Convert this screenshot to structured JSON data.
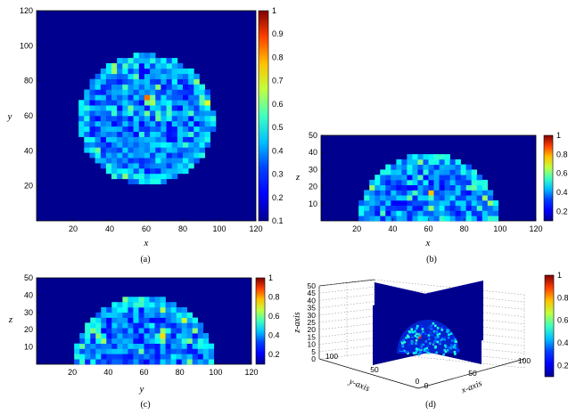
{
  "colormap": [
    "#00008f",
    "#0000ff",
    "#0080ff",
    "#00ffff",
    "#80ff80",
    "#ffff00",
    "#ff8000",
    "#ff0000",
    "#800000"
  ],
  "background_color": "#00008f",
  "chart_data": [
    {
      "id": "a",
      "type": "heatmap",
      "caption": "(a)",
      "xlabel": "x",
      "ylabel": "y",
      "xlim": [
        0,
        120
      ],
      "ylim": [
        0,
        120
      ],
      "x_ticks": [
        "20",
        "40",
        "60",
        "80",
        "100",
        "120"
      ],
      "y_ticks": [
        "20",
        "40",
        "60",
        "80",
        "100",
        "120"
      ],
      "colorbar_ticks": [
        "0.1",
        "0.2",
        "0.3",
        "0.4",
        "0.5",
        "0.6",
        "0.7",
        "0.8",
        "0.9",
        "1"
      ],
      "colorbar_range": [
        0.1,
        1
      ],
      "region": {
        "shape": "disk",
        "center": [
          60,
          58
        ],
        "radius": 37
      },
      "hotspots": [
        {
          "x": 60,
          "y": 68,
          "value": 1.0
        }
      ]
    },
    {
      "id": "b",
      "type": "heatmap",
      "caption": "(b)",
      "xlabel": "x",
      "ylabel": "z",
      "xlim": [
        0,
        120
      ],
      "ylim": [
        0,
        50
      ],
      "x_ticks": [
        "20",
        "40",
        "60",
        "80",
        "100",
        "120"
      ],
      "y_ticks": [
        "10",
        "20",
        "30",
        "40",
        "50"
      ],
      "colorbar_ticks": [
        "0.2",
        "0.4",
        "0.6",
        "0.8",
        "1"
      ],
      "colorbar_range": [
        0.1,
        1
      ],
      "region": {
        "shape": "half-disk",
        "center": [
          60,
          0
        ],
        "radius": 39
      },
      "hotspots": [
        {
          "x": 60,
          "y": 14,
          "value": 0.75
        }
      ]
    },
    {
      "id": "c",
      "type": "heatmap",
      "caption": "(c)",
      "xlabel": "y",
      "ylabel": "z",
      "xlim": [
        0,
        120
      ],
      "ylim": [
        0,
        50
      ],
      "x_ticks": [
        "20",
        "40",
        "60",
        "80",
        "100",
        "120"
      ],
      "y_ticks": [
        "10",
        "20",
        "30",
        "40",
        "50"
      ],
      "colorbar_ticks": [
        "0.2",
        "0.4",
        "0.6",
        "0.8",
        "1"
      ],
      "colorbar_range": [
        0.1,
        1
      ],
      "region": {
        "shape": "half-disk",
        "center": [
          60,
          0
        ],
        "radius": 39
      },
      "hotspots": [
        {
          "x": 68,
          "y": 14,
          "value": 0.85
        }
      ]
    },
    {
      "id": "d",
      "type": "heatmap",
      "caption": "(d)",
      "xlabel": "x-axis",
      "ylabel": "y-axis",
      "zlabel": "z-axis",
      "x_ticks": [
        "0",
        "50",
        "100"
      ],
      "y_ticks": [
        "0",
        "50",
        "100"
      ],
      "z_ticks": [
        "0",
        "5",
        "10",
        "15",
        "20",
        "25",
        "30",
        "35",
        "40",
        "45",
        "50"
      ],
      "colorbar_ticks": [
        "0.2",
        "0.4",
        "0.6",
        "0.8",
        "1"
      ],
      "colorbar_range": [
        0.1,
        1
      ],
      "grid": true
    }
  ]
}
